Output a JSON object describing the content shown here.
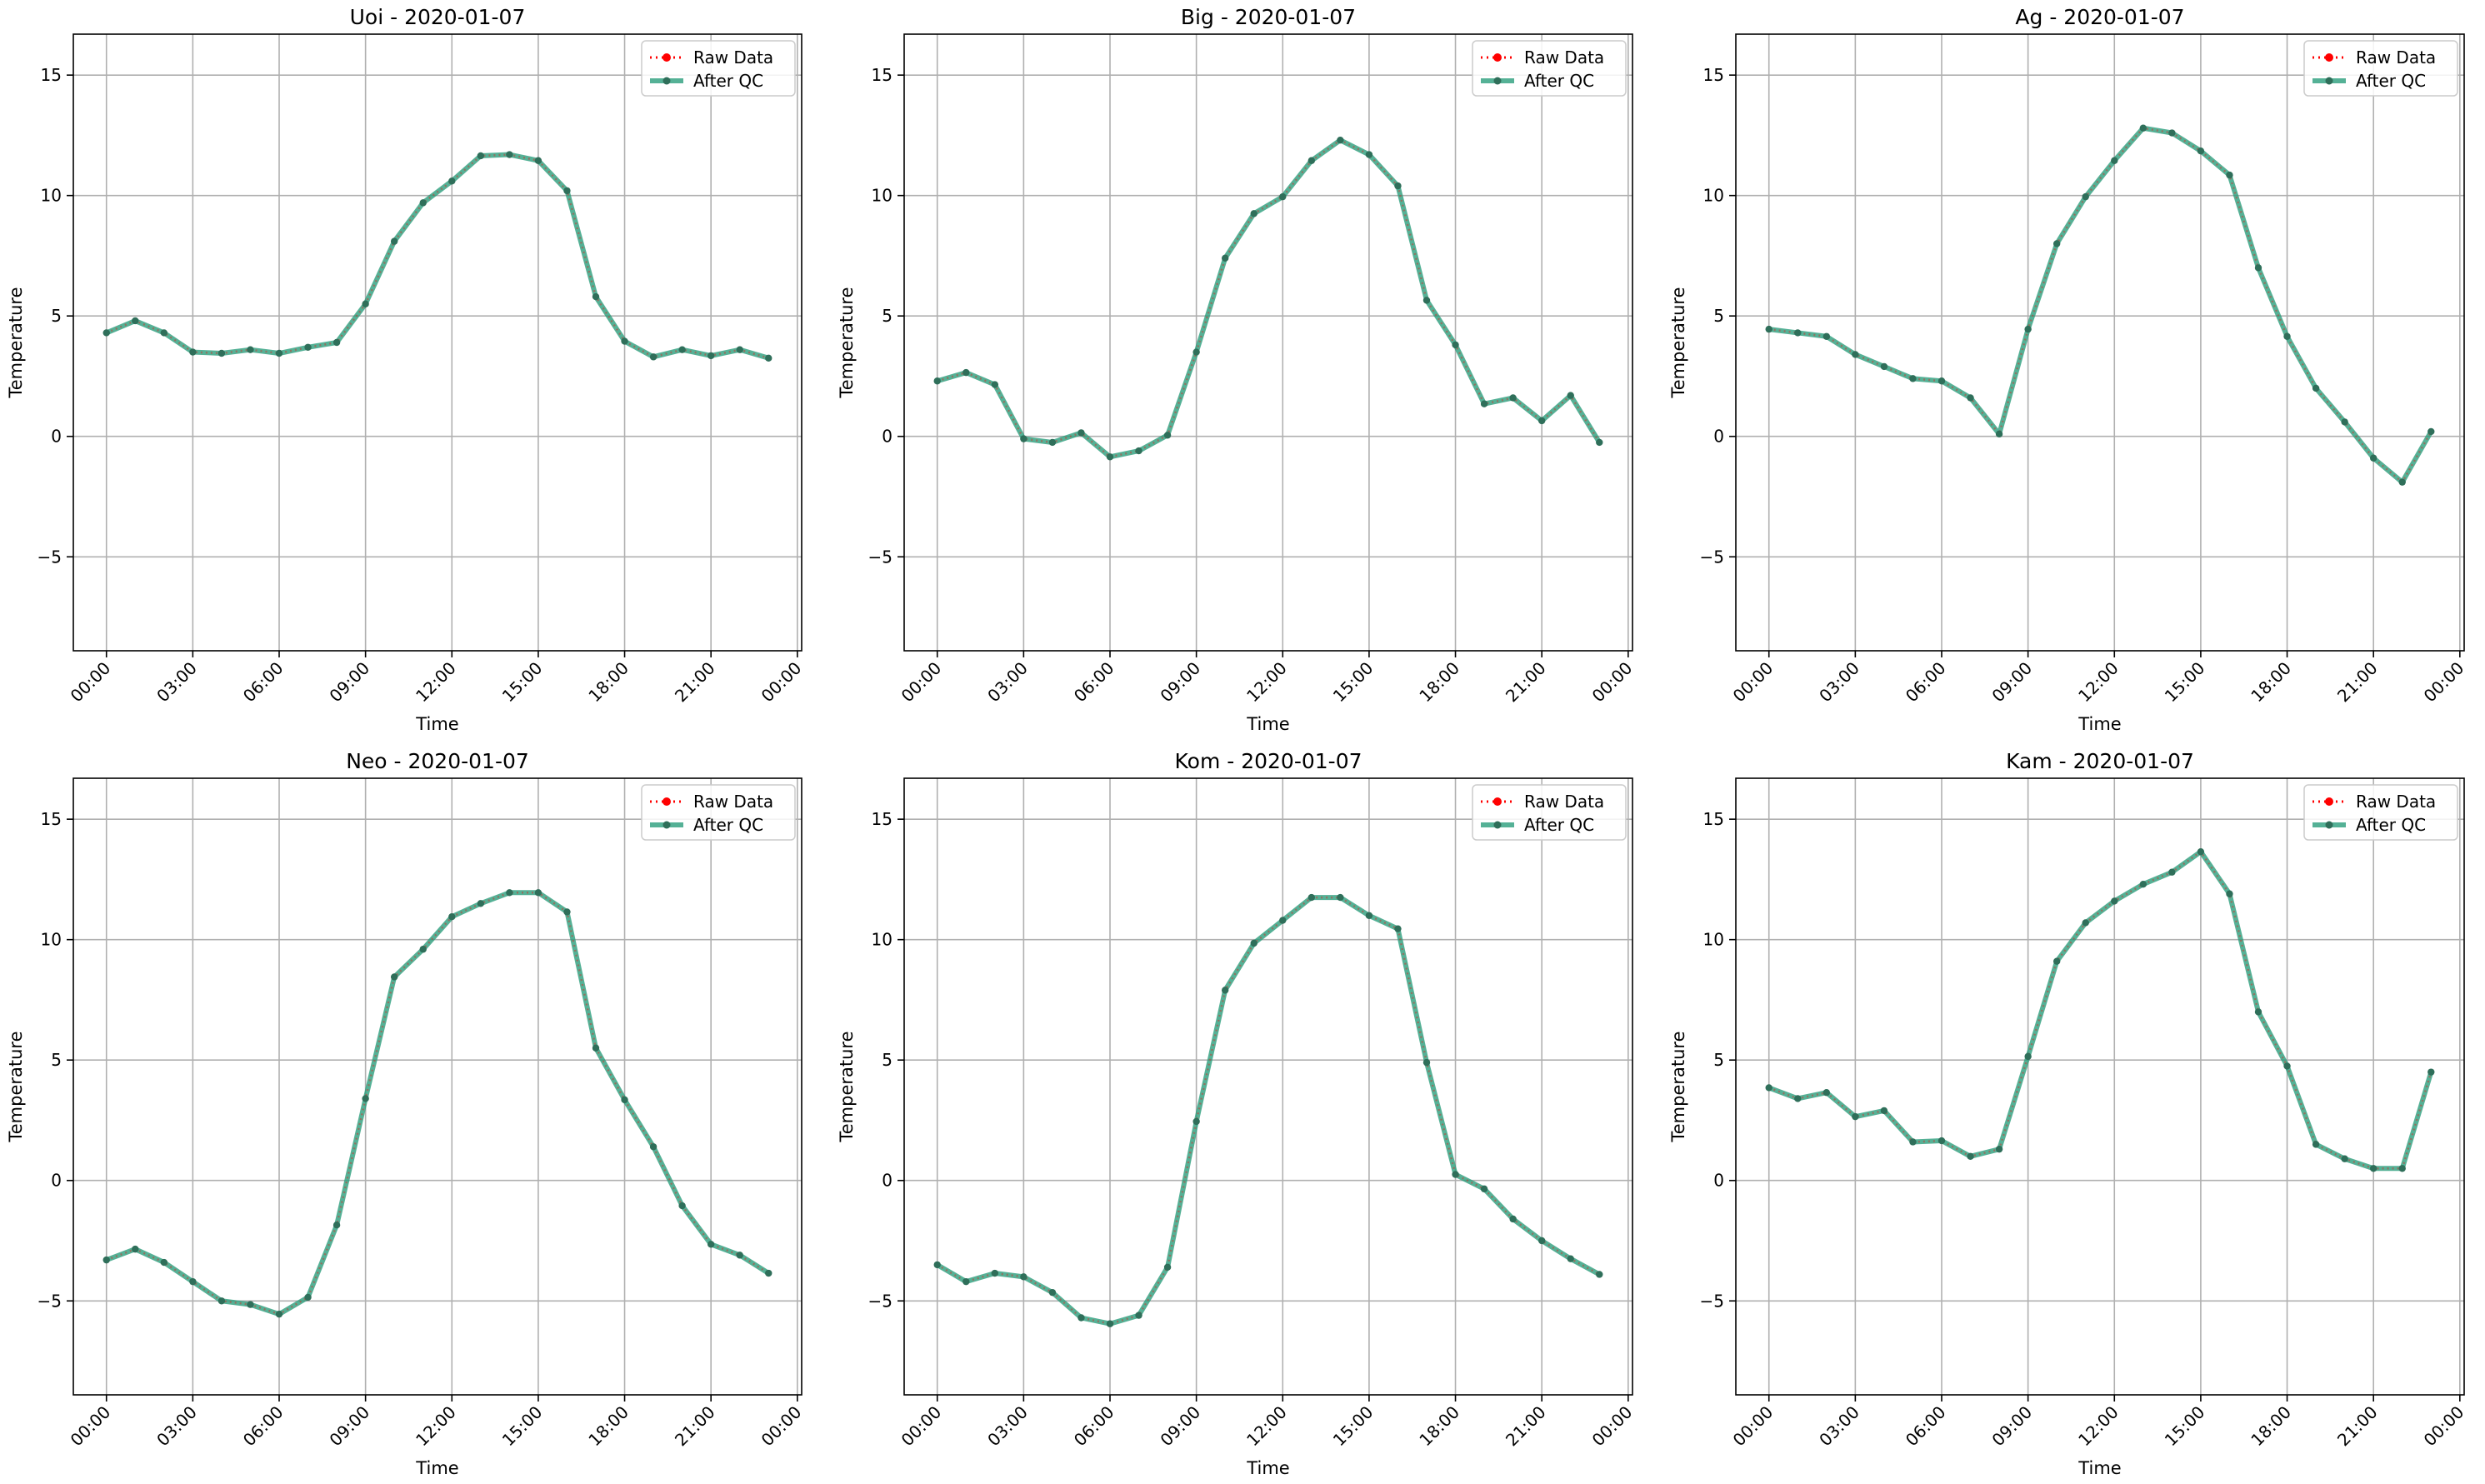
{
  "figure": {
    "colors": {
      "raw": "#ff0000",
      "qc": "#2a9d7c",
      "grid": "#b0b0b0"
    }
  },
  "chart_data": [
    {
      "type": "line",
      "title": "Uoi - 2020-01-07",
      "xlabel": "Time",
      "ylabel": "Temperature",
      "x": [
        "00:00",
        "01:00",
        "02:00",
        "03:00",
        "04:00",
        "05:00",
        "06:00",
        "07:00",
        "08:00",
        "09:00",
        "10:00",
        "11:00",
        "12:00",
        "13:00",
        "14:00",
        "15:00",
        "16:00",
        "17:00",
        "18:00",
        "19:00",
        "20:00",
        "21:00",
        "22:00",
        "23:00"
      ],
      "xticks": [
        "00:00",
        "03:00",
        "06:00",
        "09:00",
        "12:00",
        "15:00",
        "18:00",
        "21:00",
        "00:00"
      ],
      "yticks": [
        -5,
        0,
        5,
        10,
        15
      ],
      "ylim": [
        -8.9,
        16.7
      ],
      "grid": true,
      "legend_position": "top-right",
      "series": [
        {
          "name": "Raw Data",
          "values": [
            4.3,
            4.8,
            4.3,
            3.5,
            3.45,
            3.6,
            3.45,
            3.7,
            3.9,
            5.5,
            8.1,
            9.7,
            10.6,
            11.65,
            11.7,
            11.45,
            10.2,
            5.8,
            3.95,
            3.3,
            3.6,
            3.35,
            3.6,
            3.25
          ]
        },
        {
          "name": "After QC",
          "values": [
            4.3,
            4.8,
            4.3,
            3.5,
            3.45,
            3.6,
            3.45,
            3.7,
            3.9,
            5.5,
            8.1,
            9.7,
            10.6,
            11.65,
            11.7,
            11.45,
            10.2,
            5.8,
            3.95,
            3.3,
            3.6,
            3.35,
            3.6,
            3.25
          ]
        }
      ]
    },
    {
      "type": "line",
      "title": "Big - 2020-01-07",
      "xlabel": "Time",
      "ylabel": "Temperature",
      "x": [
        "00:00",
        "01:00",
        "02:00",
        "03:00",
        "04:00",
        "05:00",
        "06:00",
        "07:00",
        "08:00",
        "09:00",
        "10:00",
        "11:00",
        "12:00",
        "13:00",
        "14:00",
        "15:00",
        "16:00",
        "17:00",
        "18:00",
        "19:00",
        "20:00",
        "21:00",
        "22:00",
        "23:00"
      ],
      "xticks": [
        "00:00",
        "03:00",
        "06:00",
        "09:00",
        "12:00",
        "15:00",
        "18:00",
        "21:00",
        "00:00"
      ],
      "yticks": [
        -5,
        0,
        5,
        10,
        15
      ],
      "ylim": [
        -8.9,
        16.7
      ],
      "grid": true,
      "legend_position": "top-right",
      "series": [
        {
          "name": "Raw Data",
          "values": [
            2.3,
            2.65,
            2.15,
            -0.1,
            -0.25,
            0.15,
            -0.85,
            -0.6,
            0.05,
            3.5,
            7.4,
            9.25,
            9.95,
            11.45,
            12.3,
            11.7,
            10.4,
            5.65,
            3.8,
            1.35,
            1.6,
            0.65,
            1.7,
            -0.25
          ]
        },
        {
          "name": "After QC",
          "values": [
            2.3,
            2.65,
            2.15,
            -0.1,
            -0.25,
            0.15,
            -0.85,
            -0.6,
            0.05,
            3.5,
            7.4,
            9.25,
            9.95,
            11.45,
            12.3,
            11.7,
            10.4,
            5.65,
            3.8,
            1.35,
            1.6,
            0.65,
            1.7,
            -0.25
          ]
        }
      ]
    },
    {
      "type": "line",
      "title": "Ag - 2020-01-07",
      "xlabel": "Time",
      "ylabel": "Temperature",
      "x": [
        "00:00",
        "01:00",
        "02:00",
        "03:00",
        "04:00",
        "05:00",
        "06:00",
        "07:00",
        "08:00",
        "09:00",
        "10:00",
        "11:00",
        "12:00",
        "13:00",
        "14:00",
        "15:00",
        "16:00",
        "17:00",
        "18:00",
        "19:00",
        "20:00",
        "21:00",
        "22:00",
        "23:00"
      ],
      "xticks": [
        "00:00",
        "03:00",
        "06:00",
        "09:00",
        "12:00",
        "15:00",
        "18:00",
        "21:00",
        "00:00"
      ],
      "yticks": [
        -5,
        0,
        5,
        10,
        15
      ],
      "ylim": [
        -8.9,
        16.7
      ],
      "grid": true,
      "legend_position": "top-right",
      "series": [
        {
          "name": "Raw Data",
          "values": [
            4.45,
            4.3,
            4.15,
            3.4,
            2.9,
            2.4,
            2.3,
            1.6,
            0.1,
            4.45,
            8.0,
            9.95,
            11.45,
            12.8,
            12.6,
            11.85,
            10.85,
            7.0,
            4.15,
            2.0,
            0.6,
            -0.9,
            -1.9,
            0.2
          ]
        },
        {
          "name": "After QC",
          "values": [
            4.45,
            4.3,
            4.15,
            3.4,
            2.9,
            2.4,
            2.3,
            1.6,
            0.1,
            4.45,
            8.0,
            9.95,
            11.45,
            12.8,
            12.6,
            11.85,
            10.85,
            7.0,
            4.15,
            2.0,
            0.6,
            -0.9,
            -1.9,
            0.2
          ]
        }
      ]
    },
    {
      "type": "line",
      "title": "Neo - 2020-01-07",
      "xlabel": "Time",
      "ylabel": "Temperature",
      "x": [
        "00:00",
        "01:00",
        "02:00",
        "03:00",
        "04:00",
        "05:00",
        "06:00",
        "07:00",
        "08:00",
        "09:00",
        "10:00",
        "11:00",
        "12:00",
        "13:00",
        "14:00",
        "15:00",
        "16:00",
        "17:00",
        "18:00",
        "19:00",
        "20:00",
        "21:00",
        "22:00",
        "23:00"
      ],
      "xticks": [
        "00:00",
        "03:00",
        "06:00",
        "09:00",
        "12:00",
        "15:00",
        "18:00",
        "21:00",
        "00:00"
      ],
      "yticks": [
        -5,
        0,
        5,
        10,
        15
      ],
      "ylim": [
        -8.9,
        16.7
      ],
      "grid": true,
      "legend_position": "top-right",
      "series": [
        {
          "name": "Raw Data",
          "values": [
            -3.3,
            -2.85,
            -3.4,
            -4.2,
            -5.0,
            -5.15,
            -5.55,
            -4.85,
            -1.85,
            3.4,
            8.45,
            9.6,
            10.95,
            11.5,
            11.95,
            11.95,
            11.15,
            5.5,
            3.35,
            1.4,
            -1.05,
            -2.65,
            -3.1,
            -3.85
          ]
        },
        {
          "name": "After QC",
          "values": [
            -3.3,
            -2.85,
            -3.4,
            -4.2,
            -5.0,
            -5.15,
            -5.55,
            -4.85,
            -1.85,
            3.4,
            8.45,
            9.6,
            10.95,
            11.5,
            11.95,
            11.95,
            11.15,
            5.5,
            3.35,
            1.4,
            -1.05,
            -2.65,
            -3.1,
            -3.85
          ]
        }
      ]
    },
    {
      "type": "line",
      "title": "Kom - 2020-01-07",
      "xlabel": "Time",
      "ylabel": "Temperature",
      "x": [
        "00:00",
        "01:00",
        "02:00",
        "03:00",
        "04:00",
        "05:00",
        "06:00",
        "07:00",
        "08:00",
        "09:00",
        "10:00",
        "11:00",
        "12:00",
        "13:00",
        "14:00",
        "15:00",
        "16:00",
        "17:00",
        "18:00",
        "19:00",
        "20:00",
        "21:00",
        "22:00",
        "23:00"
      ],
      "xticks": [
        "00:00",
        "03:00",
        "06:00",
        "09:00",
        "12:00",
        "15:00",
        "18:00",
        "21:00",
        "00:00"
      ],
      "yticks": [
        -5,
        0,
        5,
        10,
        15
      ],
      "ylim": [
        -8.9,
        16.7
      ],
      "grid": true,
      "legend_position": "top-right",
      "series": [
        {
          "name": "Raw Data",
          "values": [
            -3.5,
            -4.2,
            -3.85,
            -4.0,
            -4.65,
            -5.7,
            -5.95,
            -5.6,
            -3.6,
            2.45,
            7.9,
            9.85,
            10.8,
            11.75,
            11.75,
            11.0,
            10.45,
            4.9,
            0.25,
            -0.35,
            -1.6,
            -2.5,
            -3.25,
            -3.9
          ]
        },
        {
          "name": "After QC",
          "values": [
            -3.5,
            -4.2,
            -3.85,
            -4.0,
            -4.65,
            -5.7,
            -5.95,
            -5.6,
            -3.6,
            2.45,
            7.9,
            9.85,
            10.8,
            11.75,
            11.75,
            11.0,
            10.45,
            4.9,
            0.25,
            -0.35,
            -1.6,
            -2.5,
            -3.25,
            -3.9
          ]
        }
      ]
    },
    {
      "type": "line",
      "title": "Kam - 2020-01-07",
      "xlabel": "Time",
      "ylabel": "Temperature",
      "x": [
        "00:00",
        "01:00",
        "02:00",
        "03:00",
        "04:00",
        "05:00",
        "06:00",
        "07:00",
        "08:00",
        "09:00",
        "10:00",
        "11:00",
        "12:00",
        "13:00",
        "14:00",
        "15:00",
        "16:00",
        "17:00",
        "18:00",
        "19:00",
        "20:00",
        "21:00",
        "22:00",
        "23:00"
      ],
      "xticks": [
        "00:00",
        "03:00",
        "06:00",
        "09:00",
        "12:00",
        "15:00",
        "18:00",
        "21:00",
        "00:00"
      ],
      "yticks": [
        -5,
        0,
        5,
        10,
        15
      ],
      "ylim": [
        -8.9,
        16.7
      ],
      "grid": true,
      "legend_position": "top-right",
      "series": [
        {
          "name": "Raw Data",
          "values": [
            3.85,
            3.4,
            3.65,
            2.65,
            2.9,
            1.6,
            1.65,
            1.0,
            1.3,
            5.15,
            9.1,
            10.7,
            11.6,
            12.3,
            12.8,
            13.65,
            11.9,
            7.0,
            4.75,
            1.5,
            0.9,
            0.5,
            0.5,
            4.5
          ]
        },
        {
          "name": "After QC",
          "values": [
            3.85,
            3.4,
            3.65,
            2.65,
            2.9,
            1.6,
            1.65,
            1.0,
            1.3,
            5.15,
            9.1,
            10.7,
            11.6,
            12.3,
            12.8,
            13.65,
            11.9,
            7.0,
            4.75,
            1.5,
            0.9,
            0.5,
            0.5,
            4.5
          ]
        }
      ]
    }
  ]
}
